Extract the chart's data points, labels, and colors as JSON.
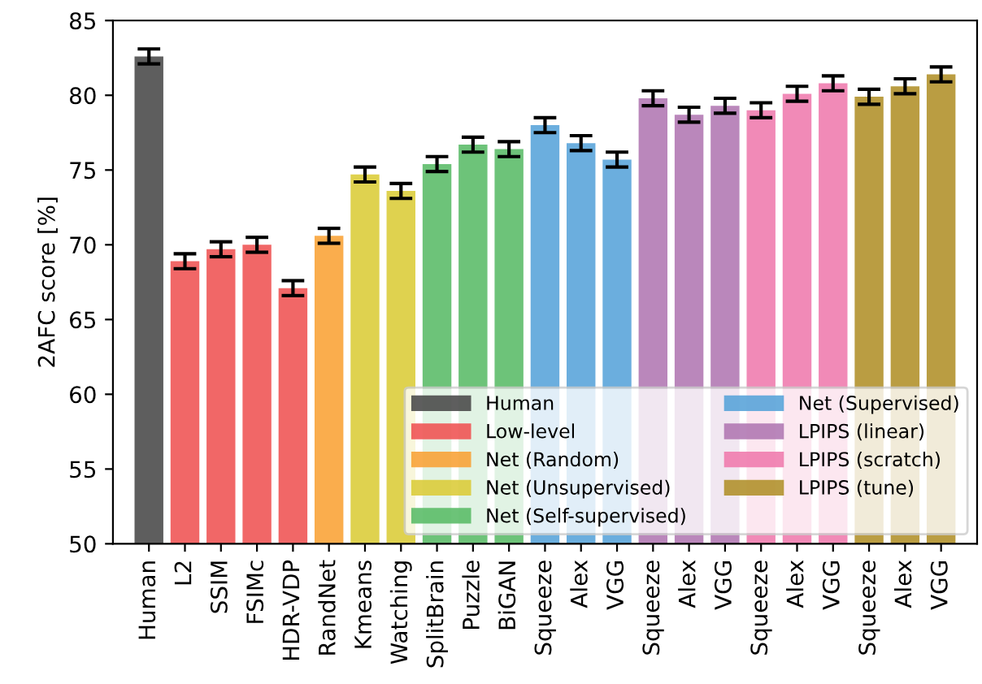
{
  "chart_data": {
    "type": "bar",
    "ylabel": "2AFC score [%]",
    "ylim": [
      50,
      85
    ],
    "yticks": [
      50,
      55,
      60,
      65,
      70,
      75,
      80,
      85
    ],
    "grid": false,
    "legend": "bottom right",
    "categories": [
      "Human",
      "L2",
      "SSIM",
      "FSIMc",
      "HDR-VDP",
      "RandNet",
      "Kmeans",
      "Watching",
      "SplitBrain",
      "Puzzle",
      "BiGAN",
      "Squeeze",
      "Alex",
      "VGG",
      "Squeeze",
      "Alex",
      "VGG",
      "Squeeze",
      "Alex",
      "VGG",
      "Squeeze",
      "Alex",
      "VGG"
    ],
    "series": [
      {
        "name": "Human",
        "color": "#4d4d4d",
        "values": [
          82.6,
          null,
          null,
          null,
          null,
          null,
          null,
          null,
          null,
          null,
          null,
          null,
          null,
          null,
          null,
          null,
          null,
          null,
          null,
          null,
          null,
          null,
          null
        ],
        "errors": [
          0.5,
          null,
          null,
          null,
          null,
          null,
          null,
          null,
          null,
          null,
          null,
          null,
          null,
          null,
          null,
          null,
          null,
          null,
          null,
          null,
          null,
          null,
          null
        ]
      },
      {
        "name": "Low-level",
        "color": "#f05656",
        "values": [
          null,
          68.9,
          69.7,
          70.0,
          67.1,
          null,
          null,
          null,
          null,
          null,
          null,
          null,
          null,
          null,
          null,
          null,
          null,
          null,
          null,
          null,
          null,
          null,
          null
        ],
        "errors": [
          null,
          0.5,
          0.5,
          0.5,
          0.5,
          null,
          null,
          null,
          null,
          null,
          null,
          null,
          null,
          null,
          null,
          null,
          null,
          null,
          null,
          null,
          null,
          null,
          null
        ]
      },
      {
        "name": "Net (Random)",
        "color": "#f9a43a",
        "values": [
          null,
          null,
          null,
          null,
          null,
          70.6,
          null,
          null,
          null,
          null,
          null,
          null,
          null,
          null,
          null,
          null,
          null,
          null,
          null,
          null,
          null,
          null,
          null
        ],
        "errors": [
          null,
          null,
          null,
          null,
          null,
          0.5,
          null,
          null,
          null,
          null,
          null,
          null,
          null,
          null,
          null,
          null,
          null,
          null,
          null,
          null,
          null,
          null,
          null
        ]
      },
      {
        "name": "Net (Unsupervised)",
        "color": "#dccd3c",
        "values": [
          null,
          null,
          null,
          null,
          null,
          null,
          74.7,
          73.6,
          null,
          null,
          null,
          null,
          null,
          null,
          null,
          null,
          null,
          null,
          null,
          null,
          null,
          null,
          null
        ],
        "errors": [
          null,
          null,
          null,
          null,
          null,
          null,
          0.5,
          0.5,
          null,
          null,
          null,
          null,
          null,
          null,
          null,
          null,
          null,
          null,
          null,
          null,
          null,
          null,
          null
        ]
      },
      {
        "name": "Net (Self-supervised)",
        "color": "#5dbd6a",
        "values": [
          null,
          null,
          null,
          null,
          null,
          null,
          null,
          null,
          75.4,
          76.7,
          76.4,
          null,
          null,
          null,
          null,
          null,
          null,
          null,
          null,
          null,
          null,
          null,
          null
        ],
        "errors": [
          null,
          null,
          null,
          null,
          null,
          null,
          null,
          null,
          0.5,
          0.5,
          0.5,
          null,
          null,
          null,
          null,
          null,
          null,
          null,
          null,
          null,
          null,
          null,
          null
        ]
      },
      {
        "name": "Net (Supervised)",
        "color": "#5ba5da",
        "values": [
          null,
          null,
          null,
          null,
          null,
          null,
          null,
          null,
          null,
          null,
          null,
          78.0,
          76.8,
          75.7,
          null,
          null,
          null,
          null,
          null,
          null,
          null,
          null,
          null
        ],
        "errors": [
          null,
          null,
          null,
          null,
          null,
          null,
          null,
          null,
          null,
          null,
          null,
          0.5,
          0.5,
          0.5,
          null,
          null,
          null,
          null,
          null,
          null,
          null,
          null,
          null
        ]
      },
      {
        "name": "LPIPS (linear)",
        "color": "#b27ab4",
        "values": [
          null,
          null,
          null,
          null,
          null,
          null,
          null,
          null,
          null,
          null,
          null,
          null,
          null,
          null,
          79.8,
          78.7,
          79.3,
          null,
          null,
          null,
          null,
          null,
          null
        ],
        "errors": [
          null,
          null,
          null,
          null,
          null,
          null,
          null,
          null,
          null,
          null,
          null,
          null,
          null,
          null,
          0.5,
          0.5,
          0.5,
          null,
          null,
          null,
          null,
          null,
          null
        ]
      },
      {
        "name": "LPIPS (scratch)",
        "color": "#f07daf",
        "values": [
          null,
          null,
          null,
          null,
          null,
          null,
          null,
          null,
          null,
          null,
          null,
          null,
          null,
          null,
          null,
          null,
          null,
          79.0,
          80.1,
          80.8,
          null,
          null,
          null
        ],
        "errors": [
          null,
          null,
          null,
          null,
          null,
          null,
          null,
          null,
          null,
          null,
          null,
          null,
          null,
          null,
          null,
          null,
          null,
          0.5,
          0.5,
          0.5,
          null,
          null,
          null
        ]
      },
      {
        "name": "LPIPS (tune)",
        "color": "#b2922e",
        "values": [
          null,
          null,
          null,
          null,
          null,
          null,
          null,
          null,
          null,
          null,
          null,
          null,
          null,
          null,
          null,
          null,
          null,
          null,
          null,
          null,
          79.9,
          80.6,
          81.4
        ],
        "errors": [
          null,
          null,
          null,
          null,
          null,
          null,
          null,
          null,
          null,
          null,
          null,
          null,
          null,
          null,
          null,
          null,
          null,
          null,
          null,
          null,
          0.5,
          0.5,
          0.5
        ]
      }
    ]
  }
}
